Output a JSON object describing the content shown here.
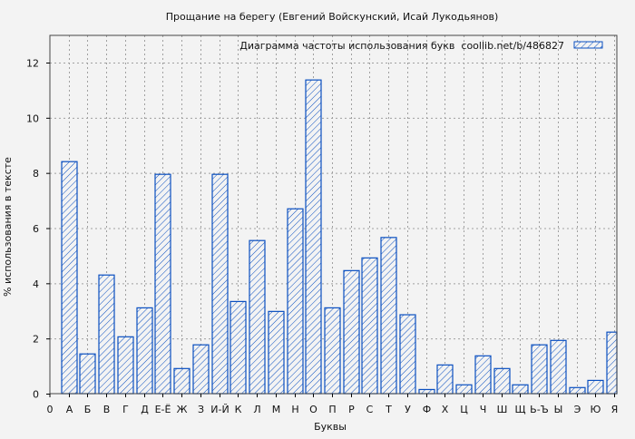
{
  "chart_data": {
    "type": "bar",
    "title": "Прощание на берегу (Евгений Войскунский, Исай Лукодьянов)",
    "xlabel": "Буквы",
    "ylabel": "% использования в тексте",
    "legend": {
      "label": "Диаграмма частоты использования букв  coollib.net/b/486827",
      "placement": "top-right"
    },
    "x_origin_label": "0",
    "categories": [
      "А",
      "Б",
      "В",
      "Г",
      "Д",
      "Е-Ё",
      "Ж",
      "З",
      "И-Й",
      "К",
      "Л",
      "М",
      "Н",
      "О",
      "П",
      "Р",
      "С",
      "Т",
      "У",
      "Ф",
      "Х",
      "Ц",
      "Ч",
      "Ш",
      "Щ",
      "Ь-Ъ",
      "Ы",
      "Э",
      "Ю",
      "Я"
    ],
    "values": [
      8.41,
      1.44,
      4.3,
      2.06,
      3.11,
      7.95,
      0.91,
      1.77,
      7.95,
      3.34,
      5.55,
      2.98,
      6.7,
      11.37,
      3.11,
      4.46,
      4.92,
      5.66,
      2.86,
      0.15,
      1.04,
      0.32,
      1.37,
      0.91,
      0.32,
      1.77,
      1.93,
      0.22,
      0.48,
      2.23
    ],
    "ylim": [
      0,
      13
    ],
    "yticks": [
      0,
      2,
      4,
      6,
      8,
      10,
      12
    ],
    "grid": true,
    "colors": {
      "bar_stroke": "#0a4fc0",
      "background": "#f3f3f3",
      "grid": "#a0a0a0"
    }
  }
}
